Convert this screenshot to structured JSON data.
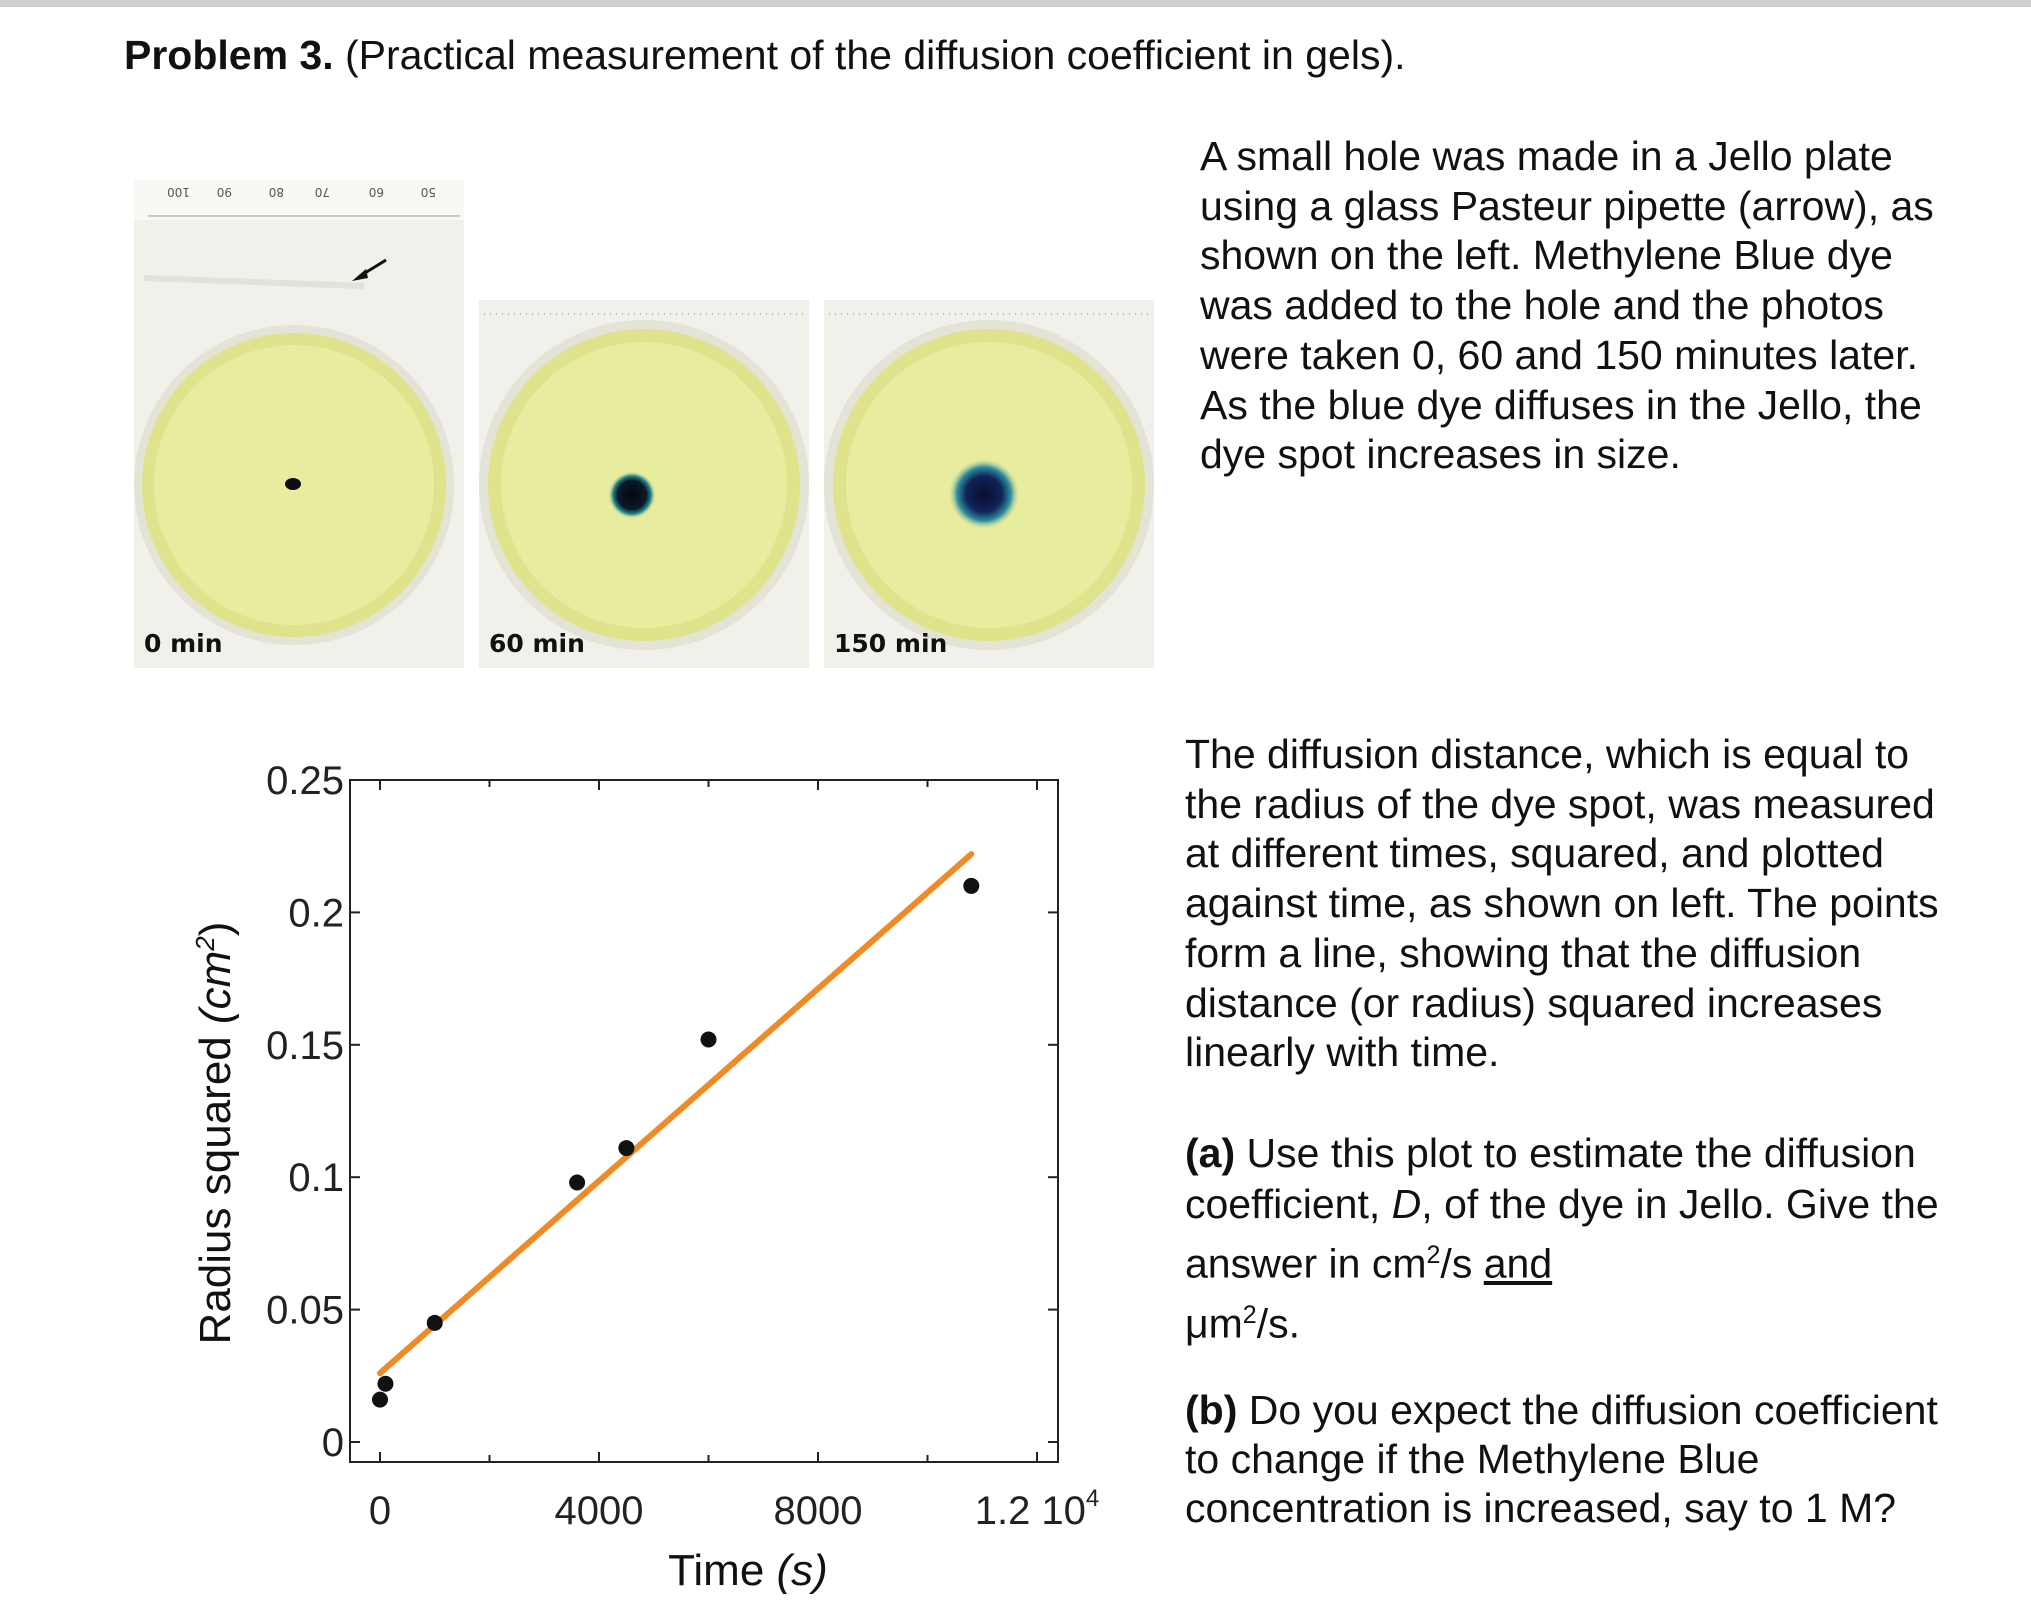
{
  "heading": {
    "label": "Problem 3.",
    "text": "(Practical measurement of the diffusion coefficient in gels)."
  },
  "intro_text": "A small hole was made in a Jello plate using a glass Pasteur pipette (arrow), as shown on the left. Methylene Blue dye was added to the hole and the photos were taken 0, 60 and 150 minutes later. As the blue dye diffuses in the Jello, the dye spot increases in size.",
  "photos": [
    {
      "label": "0 min",
      "ruler_numbers": [
        "100",
        "90",
        "80",
        "70",
        "60",
        "50"
      ]
    },
    {
      "label": "60 min"
    },
    {
      "label": "150 min"
    }
  ],
  "plot_text": "The diffusion distance, which is equal to the radius of the dye spot, was measured at different times, squared, and plotted against time, as shown on left. The points form a line, showing that the diffusion distance (or radius) squared increases linearly with time.",
  "question_a": {
    "label": "(a)",
    "text": "Use this plot to estimate the diffusion coefficient,",
    "symbol": "D",
    "text2": ", of the dye in Jello. Give the answer in cm",
    "sup": "2",
    "text3": "/s",
    "and": "and",
    "unit": "μm",
    "sup2": "2",
    "text4": "/s."
  },
  "question_b": {
    "label": "(b)",
    "text": "Do you expect the diffusion coefficient to change if the Methylene Blue concentration is increased, say to 1 M?"
  },
  "colors": {
    "fit_line": "#f08a24",
    "points": "#111111",
    "gel": "#e7ea9c"
  },
  "chart_data": {
    "type": "scatter",
    "xlabel": "Time",
    "xlabel_unit": "(s)",
    "ylabel": "Radius squared",
    "ylabel_unit": "(cm",
    "ylabel_sup": "2",
    "ylabel_close": ")",
    "xlim": [
      0,
      12000
    ],
    "ylim": [
      0,
      0.25
    ],
    "x_ticks": [
      0,
      4000,
      8000,
      12000
    ],
    "x_tick_labels": [
      "0",
      "4000",
      "8000",
      "1.2 10"
    ],
    "x_tick_label_last_sup": "4",
    "y_ticks": [
      0,
      0.05,
      0.1,
      0.15,
      0.2,
      0.25
    ],
    "y_tick_labels": [
      "0",
      "0.05",
      "0.1",
      "0.15",
      "0.2",
      "0.25"
    ],
    "points": [
      {
        "x": 0,
        "y": 0.016
      },
      {
        "x": 100,
        "y": 0.022
      },
      {
        "x": 1000,
        "y": 0.045
      },
      {
        "x": 3600,
        "y": 0.098
      },
      {
        "x": 4500,
        "y": 0.111
      },
      {
        "x": 6000,
        "y": 0.152
      },
      {
        "x": 10800,
        "y": 0.21
      }
    ],
    "fit_line": {
      "x": [
        0,
        10800
      ],
      "y": [
        0.026,
        0.222
      ]
    },
    "grid": false
  }
}
